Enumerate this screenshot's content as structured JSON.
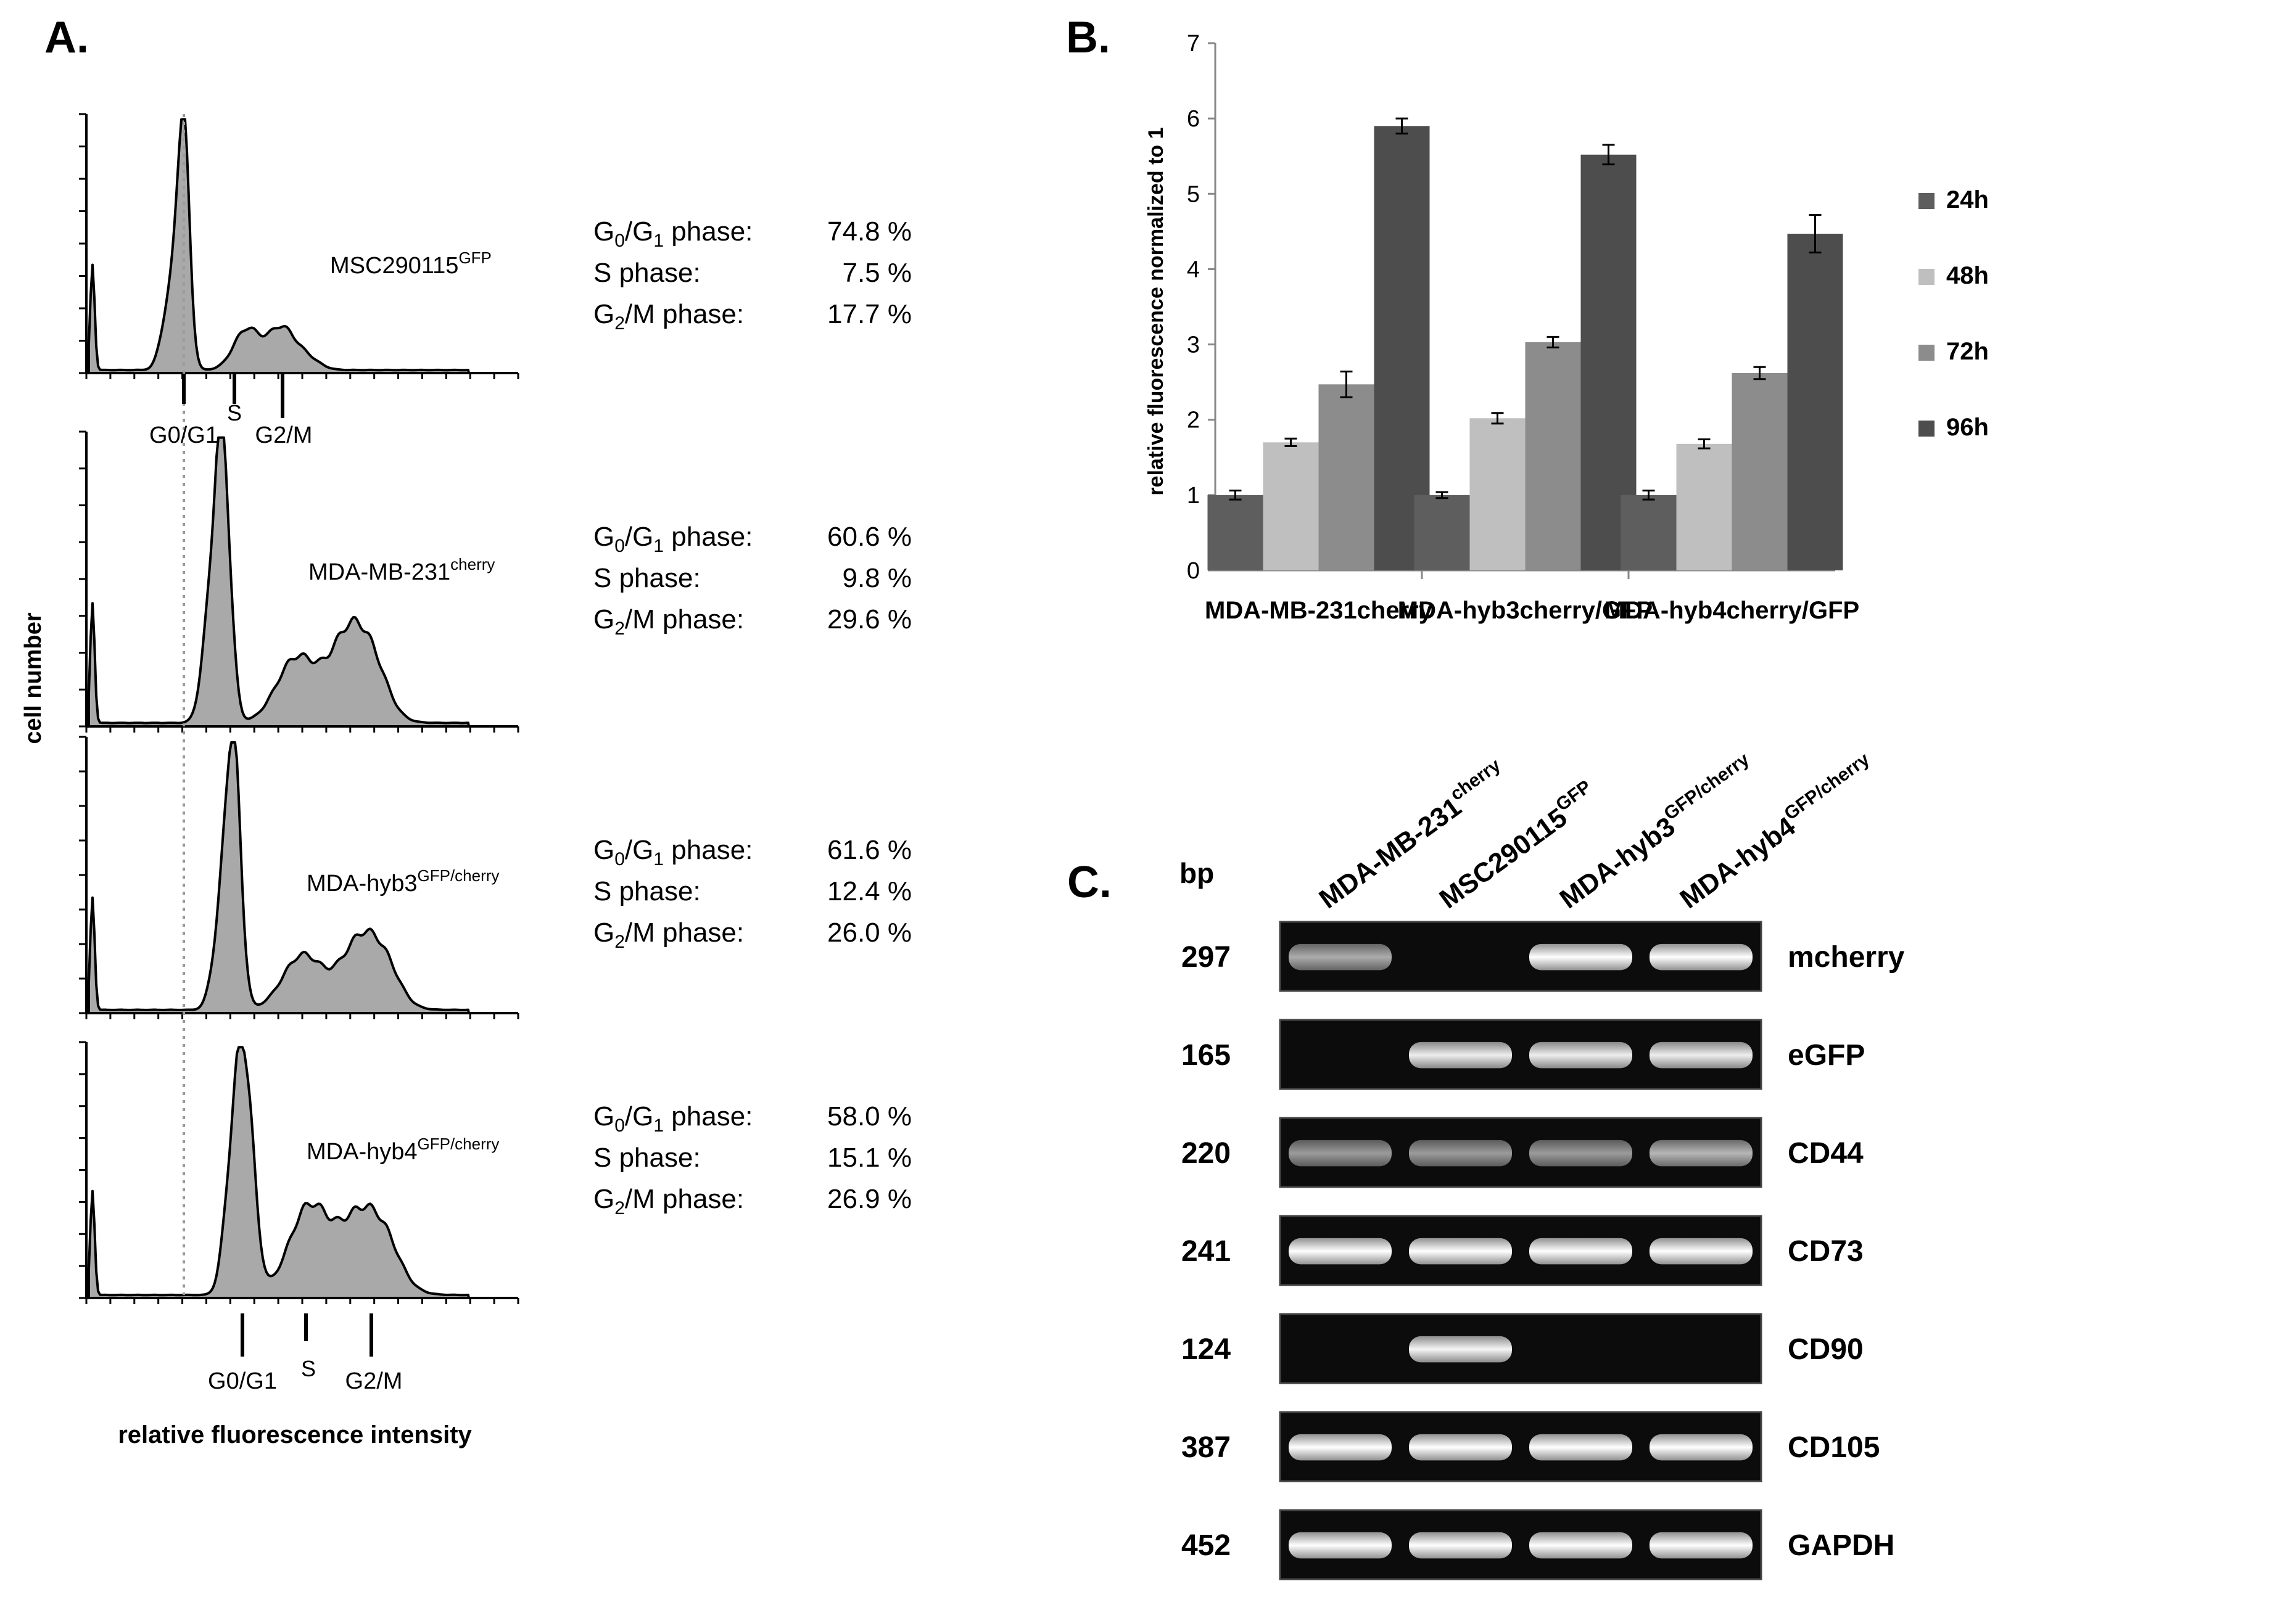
{
  "panel_a": {
    "label": "A.",
    "y_axis_label": "cell number",
    "x_axis_label": "relative fluorescence intensity",
    "marker_top": {
      "g0g1": "G0/G1",
      "s": "S",
      "g2m": "G2/M"
    },
    "marker_bottom": {
      "g0g1": "G0/G1",
      "s": "S",
      "g2m": "G2/M"
    },
    "samples": [
      {
        "name": "MSC290115",
        "sup": "GFP",
        "stats": [
          {
            "phase": "G0/G1 phase:",
            "value": "74.8 %"
          },
          {
            "phase": "S phase:",
            "value": "7.5 %"
          },
          {
            "phase": "G2/M phase:",
            "value": "17.7 %"
          }
        ]
      },
      {
        "name": "MDA-MB-231",
        "sup": "cherry",
        "stats": [
          {
            "phase": "G0/G1 phase:",
            "value": "60.6 %"
          },
          {
            "phase": "S phase:",
            "value": "9.8 %"
          },
          {
            "phase": "G2/M phase:",
            "value": "29.6 %"
          }
        ]
      },
      {
        "name": "MDA-hyb3",
        "sup": "GFP/cherry",
        "stats": [
          {
            "phase": "G0/G1 phase:",
            "value": "61.6 %"
          },
          {
            "phase": "S phase:",
            "value": "12.4 %"
          },
          {
            "phase": "G2/M phase:",
            "value": "26.0 %"
          }
        ]
      },
      {
        "name": "MDA-hyb4",
        "sup": "GFP/cherry",
        "stats": [
          {
            "phase": "G0/G1 phase:",
            "value": "58.0 %"
          },
          {
            "phase": "S phase:",
            "value": "15.1 %"
          },
          {
            "phase": "G2/M phase:",
            "value": "26.9 %"
          }
        ]
      }
    ]
  },
  "panel_b": {
    "label": "B."
  },
  "panel_c": {
    "label": "C.",
    "bp_header": "bp",
    "lanes": [
      {
        "name": "MDA-MB-231",
        "sup": "cherry"
      },
      {
        "name": "MSC290115",
        "sup": "GFP"
      },
      {
        "name": "MDA-hyb3",
        "sup": "GFP/cherry"
      },
      {
        "name": "MDA-hyb4",
        "sup": "GFP/cherry"
      }
    ],
    "rows": [
      {
        "bp": "297",
        "gene": "mcherry",
        "bands": [
          0.55,
          0,
          1,
          1
        ]
      },
      {
        "bp": "165",
        "gene": "eGFP",
        "bands": [
          0,
          0.9,
          0.9,
          0.9
        ]
      },
      {
        "bp": "220",
        "gene": "CD44",
        "bands": [
          0.45,
          0.45,
          0.45,
          0.6
        ]
      },
      {
        "bp": "241",
        "gene": "CD73",
        "bands": [
          1,
          1,
          1,
          1
        ]
      },
      {
        "bp": "124",
        "gene": "CD90",
        "bands": [
          0,
          0.95,
          0,
          0
        ]
      },
      {
        "bp": "387",
        "gene": "CD105",
        "bands": [
          1,
          1,
          1,
          1
        ]
      },
      {
        "bp": "452",
        "gene": "GAPDH",
        "bands": [
          1,
          1,
          1,
          1
        ]
      }
    ]
  },
  "chart_data": {
    "type": "bar",
    "title": "",
    "xlabel": "",
    "ylabel": "relative fluorescence  normalized to 1",
    "ylim": [
      0,
      7
    ],
    "yticks": [
      "0",
      "1",
      "2",
      "3",
      "4",
      "5",
      "6",
      "7"
    ],
    "categories": [
      "MDA-MB-231cherry",
      "MDA-hyb3cherry/GFP",
      "MDA-hyb4cherry/GFP"
    ],
    "series": [
      {
        "name": "24h",
        "color": "#5e5e5e",
        "values": [
          1.0,
          1.0,
          1.0
        ],
        "errors": [
          0.06,
          0.04,
          0.06
        ]
      },
      {
        "name": "48h",
        "color": "#bfbfbf",
        "values": [
          1.7,
          2.02,
          1.68
        ],
        "errors": [
          0.05,
          0.07,
          0.06
        ]
      },
      {
        "name": "72h",
        "color": "#8c8c8c",
        "values": [
          2.47,
          3.03,
          2.62
        ],
        "errors": [
          0.17,
          0.07,
          0.08
        ]
      },
      {
        "name": "96h",
        "color": "#4d4d4d",
        "values": [
          5.9,
          5.52,
          4.47
        ],
        "errors": [
          0.1,
          0.13,
          0.25
        ]
      }
    ],
    "legend": "right"
  }
}
